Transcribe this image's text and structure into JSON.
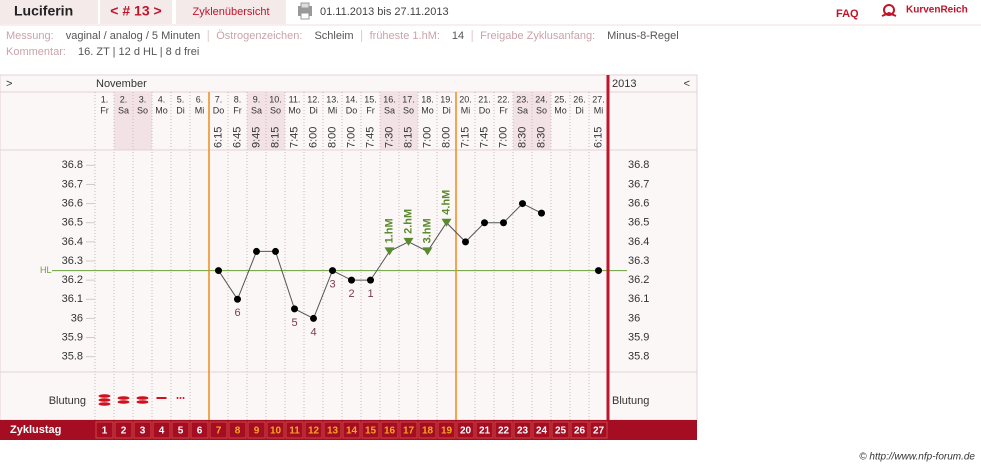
{
  "header": {
    "name": "Luciferin",
    "cycle": "< # 13 >",
    "overview": "Zyklenübersicht",
    "range": "01.11.2013 bis 27.11.2013",
    "faq": "FAQ",
    "brand": "KurvenReich"
  },
  "info": [
    {
      "label": "Messung:",
      "value": "vaginal / analog / 5 Minuten"
    },
    {
      "label": "Östrogenzeichen:",
      "value": "Schleim"
    },
    {
      "label": "früheste 1.hM:",
      "value": "14"
    },
    {
      "label": "Freigabe Zyklusanfang:",
      "value": "Minus-8-Regel"
    }
  ],
  "comment": {
    "label": "Kommentar:",
    "value": "16. ZT | 12 d HL | 8 d frei"
  },
  "chart_data": {
    "type": "line",
    "nav_left": ">",
    "nav_right": "<",
    "month": "November",
    "year": "2013",
    "categories": [
      "1.",
      "2.",
      "3.",
      "4.",
      "5.",
      "6.",
      "7.",
      "8.",
      "9.",
      "10.",
      "11.",
      "12.",
      "13.",
      "14.",
      "15.",
      "16.",
      "17.",
      "18.",
      "19.",
      "20.",
      "21.",
      "22.",
      "23.",
      "24.",
      "25.",
      "26.",
      "27."
    ],
    "weekdays": [
      "Fr",
      "Sa",
      "So",
      "Mo",
      "Di",
      "Mi",
      "Do",
      "Fr",
      "Sa",
      "So",
      "Mo",
      "Di",
      "Mi",
      "Do",
      "Fr",
      "Sa",
      "So",
      "Mo",
      "Di",
      "Mi",
      "Do",
      "Fr",
      "Sa",
      "So",
      "Mo",
      "Di",
      "Mi"
    ],
    "times": [
      null,
      null,
      null,
      null,
      null,
      null,
      "6:15",
      "6:45",
      "9:45",
      "8:15",
      "7:45",
      "6:00",
      "8:00",
      "7:00",
      "7:45",
      "7:30",
      "8:15",
      "7:00",
      "8:00",
      "7:15",
      "7:45",
      "7:00",
      "8:30",
      "8:30",
      null,
      null,
      "6:15"
    ],
    "series": [
      {
        "name": "Temperatur",
        "color": "#000000",
        "values": [
          null,
          null,
          null,
          null,
          null,
          null,
          36.25,
          36.1,
          36.35,
          36.35,
          36.05,
          36.0,
          36.25,
          36.2,
          36.2,
          36.35,
          36.4,
          36.35,
          36.5,
          36.4,
          36.5,
          36.5,
          36.6,
          36.55,
          null,
          null,
          36.25
        ]
      }
    ],
    "point_labels": [
      null,
      null,
      null,
      null,
      null,
      null,
      null,
      "6",
      null,
      null,
      "5",
      "4",
      "3",
      "2",
      "1",
      null,
      null,
      null,
      null,
      null,
      null,
      null,
      null,
      null,
      null,
      null,
      null
    ],
    "hm_labels": [
      null,
      null,
      null,
      null,
      null,
      null,
      null,
      null,
      null,
      null,
      null,
      null,
      null,
      null,
      null,
      "1.hM",
      "2.hM",
      "3.hM",
      "4.hM",
      null,
      null,
      null,
      null,
      null,
      null,
      null,
      null
    ],
    "hm_color": "#5a8a2e",
    "ylim": [
      35.72,
      36.88
    ],
    "yticks": [
      35.8,
      35.9,
      36,
      36.1,
      36.2,
      36.3,
      36.4,
      36.5,
      36.6,
      36.7,
      36.8
    ],
    "hl_label": "HL",
    "hl_value": 36.25,
    "hl_color": "#6a9f3a",
    "bleeding_label": "Blutung",
    "bleeding": [
      4,
      3,
      3,
      2,
      1,
      null,
      null,
      null,
      null,
      null,
      null,
      null,
      null,
      null,
      null,
      null,
      null,
      null,
      null,
      null,
      null,
      null,
      null,
      null,
      null,
      null,
      null
    ],
    "cycle_label": "Zyklustag",
    "cycle_days": [
      1,
      2,
      3,
      4,
      5,
      6,
      7,
      8,
      9,
      10,
      11,
      12,
      13,
      14,
      15,
      16,
      17,
      18,
      19,
      20,
      21,
      22,
      23,
      24,
      25,
      26,
      27
    ],
    "fertile_window": [
      7,
      19
    ]
  },
  "footer": "© http://www.nfp-forum.de"
}
